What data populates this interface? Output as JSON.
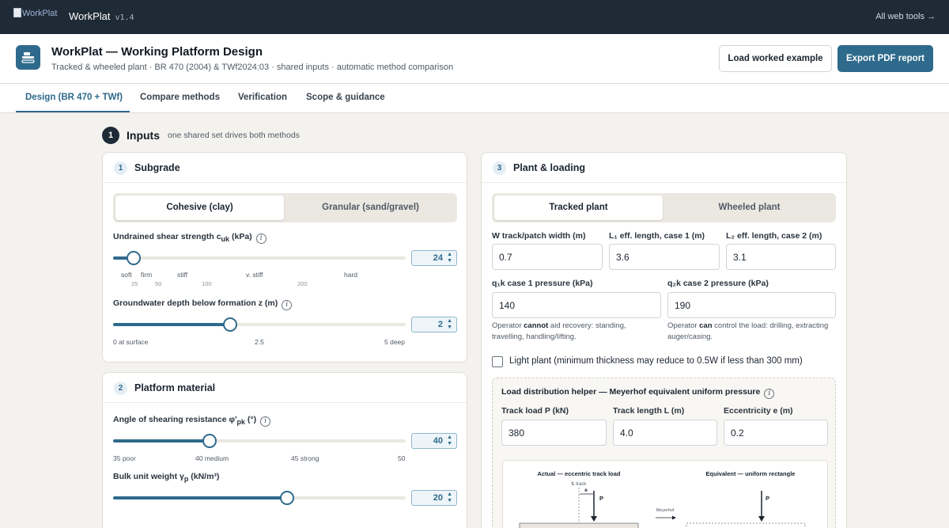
{
  "topbar": {
    "logo_alt": "WorkPlat",
    "brand": "WorkPlat",
    "version": "v1.4",
    "all_tools": "All web tools →"
  },
  "header": {
    "title": "WorkPlat — Working Platform Design",
    "subtitle": "Tracked & wheeled plant · BR 470 (2004) & TWf2024:03 · shared inputs · automatic method comparison",
    "load_example_label": "Load worked example",
    "export_label": "Export PDF report"
  },
  "tabs": [
    {
      "label": "Design (BR 470 + TWf)",
      "active": true
    },
    {
      "label": "Compare methods",
      "active": false
    },
    {
      "label": "Verification",
      "active": false
    },
    {
      "label": "Scope & guidance",
      "active": false
    }
  ],
  "inputs": {
    "num": "1",
    "title": "Inputs",
    "note": "one shared set drives both methods"
  },
  "subgrade": {
    "num": "1",
    "title": "Subgrade",
    "toggle": [
      "Cohesive (clay)",
      "Granular (sand/gravel)"
    ],
    "cu": {
      "label_pre": "Undrained shear strength ",
      "symbol": "c",
      "symbol_sub": "uk",
      "unit": " (kPa)",
      "value": "24",
      "fraction": 0.07,
      "ticks": [
        "soft",
        "firm",
        "stiff",
        "v. stiff",
        "hard"
      ],
      "numbers": [
        "25",
        "50",
        "100",
        "200"
      ]
    },
    "gw": {
      "label": "Groundwater depth below formation z (m)",
      "value": "2",
      "fraction": 0.4,
      "ticks": [
        "0 at surface",
        "2.5",
        "5 deep"
      ]
    }
  },
  "material": {
    "num": "2",
    "title": "Platform material",
    "phi": {
      "label_pre": "Angle of shearing resistance ",
      "symbol": "φ'",
      "symbol_sub": "pk",
      "unit": " (°)",
      "value": "40",
      "fraction": 0.33,
      "ticks": [
        "35 poor",
        "40 medium",
        "45 strong",
        "50"
      ]
    },
    "gamma": {
      "label_pre": "Bulk unit weight ",
      "symbol": "γ",
      "symbol_sub": "p",
      "unit": " (kN/m³)",
      "value": "20",
      "fraction": 0.595
    }
  },
  "plant": {
    "num": "3",
    "title": "Plant & loading",
    "toggle": [
      "Tracked plant",
      "Wheeled plant"
    ],
    "w_label": "track/patch width (m)",
    "w_symbol": "W",
    "w_value": "0.7",
    "l1_label": "L₁ eff. length, case 1 (m)",
    "l1_value": "3.6",
    "l2_label": "L₂ eff. length, case 2 (m)",
    "l2_value": "3.1",
    "q1_label": "q₁k case 1 pressure (kPa)",
    "q1_value": "140",
    "q2_label": "q₂k case 2 pressure (kPa)",
    "q2_value": "190",
    "help1_pre": "Operator ",
    "help1_bold": "cannot",
    "help1_post": " aid recovery: standing, travelling, handling/lifting.",
    "help2_pre": "Operator ",
    "help2_bold": "can",
    "help2_post": " control the load: drilling, extracting auger/casing.",
    "light_plant": "Light plant (minimum thickness may reduce to 0.5W if less than 300 mm)"
  },
  "helper": {
    "title": "Load distribution helper — Meyerhof equivalent uniform pressure",
    "p_label": "Track load P (kN)",
    "p_value": "380",
    "l_label": "Track length L (m)",
    "l_value": "4.0",
    "e_label": "Eccentricity e (m)",
    "e_value": "0.2",
    "diagram": {
      "actual_title": "Actual — eccentric track load",
      "equiv_title": "Equivalent — uniform rectangle",
      "track_lbl": "℄ track",
      "e_lbl": "e",
      "p_lbl": "P",
      "meyerhof": "Meyerhof"
    }
  },
  "colors": {
    "accent": "#2e6a8c",
    "topbar": "#1e2a36",
    "background": "#f4f2ee"
  }
}
